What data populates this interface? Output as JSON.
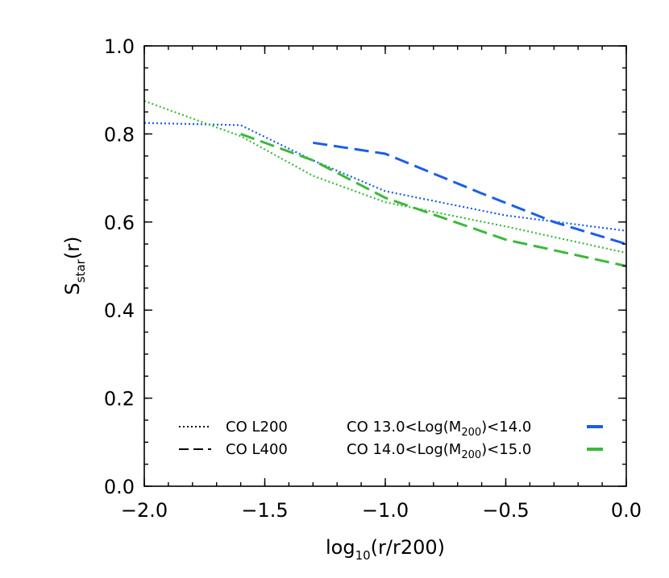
{
  "chart_data": {
    "type": "line",
    "xlabel": {
      "base": "log",
      "sub": "10",
      "rest": "(r/r200)"
    },
    "ylabel": {
      "base": "S",
      "sub": "star",
      "rest": "(r)"
    },
    "xlim": [
      -2.0,
      0.0
    ],
    "ylim": [
      0.0,
      1.0
    ],
    "x_ticks": [
      -2.0,
      -1.5,
      -1.0,
      -0.5,
      0.0
    ],
    "x_tick_labels": [
      "−2.0",
      "−1.5",
      "−1.0",
      "−0.5",
      "0.0"
    ],
    "y_ticks": [
      0.0,
      0.2,
      0.4,
      0.6,
      0.8,
      1.0
    ],
    "y_tick_labels": [
      "0.0",
      "0.2",
      "0.4",
      "0.6",
      "0.8",
      "1.0"
    ],
    "grid": false,
    "colors": {
      "blue": "#1a5fe6",
      "green": "#3cb83c",
      "black": "#000000"
    },
    "series": [
      {
        "color": "#1a5fe6",
        "dash": "dotted",
        "x": [
          -2.0,
          -1.6,
          -1.3,
          -1.0,
          -0.5,
          0.0
        ],
        "y": [
          0.825,
          0.82,
          0.74,
          0.67,
          0.615,
          0.58
        ]
      },
      {
        "color": "#3cb83c",
        "dash": "dotted",
        "x": [
          -2.0,
          -1.6,
          -1.3,
          -1.0,
          -0.5,
          0.0
        ],
        "y": [
          0.875,
          0.795,
          0.705,
          0.645,
          0.59,
          0.53
        ]
      },
      {
        "color": "#1a5fe6",
        "dash": "dashed",
        "x": [
          -1.3,
          -1.0,
          -0.6,
          -0.3,
          0.0
        ],
        "y": [
          0.78,
          0.755,
          0.665,
          0.6,
          0.55
        ]
      },
      {
        "color": "#3cb83c",
        "dash": "dashed",
        "x": [
          -1.6,
          -1.3,
          -1.0,
          -0.5,
          0.0
        ],
        "y": [
          0.8,
          0.74,
          0.655,
          0.56,
          0.5
        ]
      }
    ],
    "legend": {
      "placement": "bottom",
      "styles": [
        {
          "label": "CO  L200",
          "dash": "dotted"
        },
        {
          "label": "CO  L400",
          "dash": "dashed"
        }
      ],
      "masses": [
        {
          "prefix": "CO  13.0<Log(M",
          "sub": "200",
          "suffix": ")<14.0",
          "color": "#1a5fe6"
        },
        {
          "prefix": "CO  14.0<Log(M",
          "sub": "200",
          "suffix": ")<15.0",
          "color": "#3cb83c"
        }
      ]
    }
  }
}
